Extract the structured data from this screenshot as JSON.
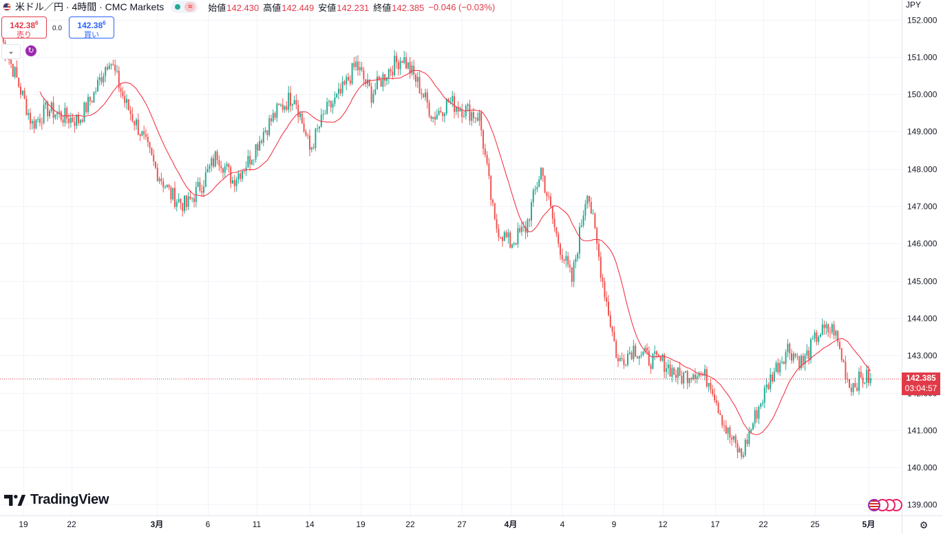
{
  "header": {
    "title": "米ドル／円 · 4時間 · CMC Markets",
    "ohlc": [
      {
        "label": "始値",
        "value": "142.430"
      },
      {
        "label": "高値",
        "value": "142.449"
      },
      {
        "label": "安値",
        "value": "142.231"
      },
      {
        "label": "終値",
        "value": "142.385"
      }
    ],
    "change": "−0.046 (−0.03%)"
  },
  "quotes": {
    "sell_price": "142.38",
    "sell_pip": "6",
    "sell_label": "売り",
    "spread": "0.0",
    "buy_price": "142.38",
    "buy_pip": "6",
    "buy_label": "買い"
  },
  "currency": "JPY",
  "last_price": {
    "price": "142.385",
    "countdown": "03:04:57"
  },
  "branding": {
    "logo_text": "TradingView"
  },
  "colors": {
    "up": "#22ab94",
    "down": "#ef5350",
    "ma": "#f23645",
    "grid": "#f0f3fa",
    "axis_text": "#131722"
  },
  "icons": {
    "symbol": "us-flag-icon",
    "status": "green-dot-icon",
    "wave": "wave-icon",
    "collapse": "chevron-down-icon",
    "refresh": "refresh-icon",
    "settings": "gear-icon"
  },
  "chart_data": {
    "type": "candlestick",
    "series_overlay": "moving average (red line)",
    "ylim": [
      138.8,
      152.3
    ],
    "y_ticks": [
      139,
      140,
      141,
      142,
      143,
      144,
      145,
      146,
      147,
      148,
      149,
      150,
      151,
      152
    ],
    "y_tick_labels": [
      "139.000",
      "140.000",
      "141.000",
      "142.000",
      "143.000",
      "144.000",
      "145.000",
      "146.000",
      "147.000",
      "148.000",
      "149.000",
      "150.000",
      "151.000",
      "152.000"
    ],
    "x_tick_labels": [
      "19",
      "22",
      "3月",
      "6",
      "11",
      "14",
      "19",
      "22",
      "27",
      "4月",
      "4",
      "9",
      "12",
      "17",
      "22",
      "25",
      "5月"
    ],
    "x_tick_bold": [
      false,
      false,
      true,
      false,
      false,
      false,
      false,
      false,
      false,
      true,
      false,
      false,
      false,
      false,
      false,
      false,
      true
    ],
    "close_keypoints": [
      [
        0,
        151.5
      ],
      [
        8,
        150.4
      ],
      [
        16,
        149.2
      ],
      [
        24,
        149.6
      ],
      [
        32,
        149.4
      ],
      [
        40,
        149.3
      ],
      [
        48,
        150.0
      ],
      [
        56,
        151.0
      ],
      [
        64,
        149.8
      ],
      [
        72,
        149.0
      ],
      [
        80,
        148.0
      ],
      [
        88,
        147.3
      ],
      [
        96,
        147.0
      ],
      [
        104,
        147.6
      ],
      [
        112,
        148.4
      ],
      [
        120,
        147.7
      ],
      [
        128,
        148.2
      ],
      [
        136,
        149.0
      ],
      [
        144,
        149.6
      ],
      [
        152,
        150.0
      ],
      [
        160,
        148.5
      ],
      [
        168,
        149.5
      ],
      [
        176,
        150.0
      ],
      [
        184,
        150.8
      ],
      [
        192,
        150.0
      ],
      [
        200,
        150.6
      ],
      [
        208,
        151.0
      ],
      [
        216,
        150.3
      ],
      [
        224,
        149.4
      ],
      [
        232,
        149.8
      ],
      [
        240,
        149.6
      ],
      [
        248,
        149.4
      ],
      [
        256,
        146.5
      ],
      [
        264,
        146.0
      ],
      [
        272,
        146.4
      ],
      [
        280,
        148.0
      ],
      [
        288,
        146.2
      ],
      [
        296,
        145.0
      ],
      [
        304,
        147.5
      ],
      [
        312,
        145.0
      ],
      [
        320,
        142.8
      ],
      [
        328,
        143.2
      ],
      [
        336,
        142.9
      ],
      [
        344,
        142.8
      ],
      [
        352,
        142.4
      ],
      [
        360,
        142.6
      ],
      [
        368,
        142.3
      ],
      [
        376,
        141.0
      ],
      [
        384,
        140.3
      ],
      [
        392,
        141.5
      ],
      [
        400,
        142.5
      ],
      [
        408,
        143.2
      ],
      [
        416,
        142.8
      ],
      [
        424,
        143.6
      ],
      [
        432,
        143.7
      ],
      [
        440,
        142.2
      ],
      [
        448,
        142.4
      ],
      [
        451,
        142.385
      ]
    ]
  }
}
